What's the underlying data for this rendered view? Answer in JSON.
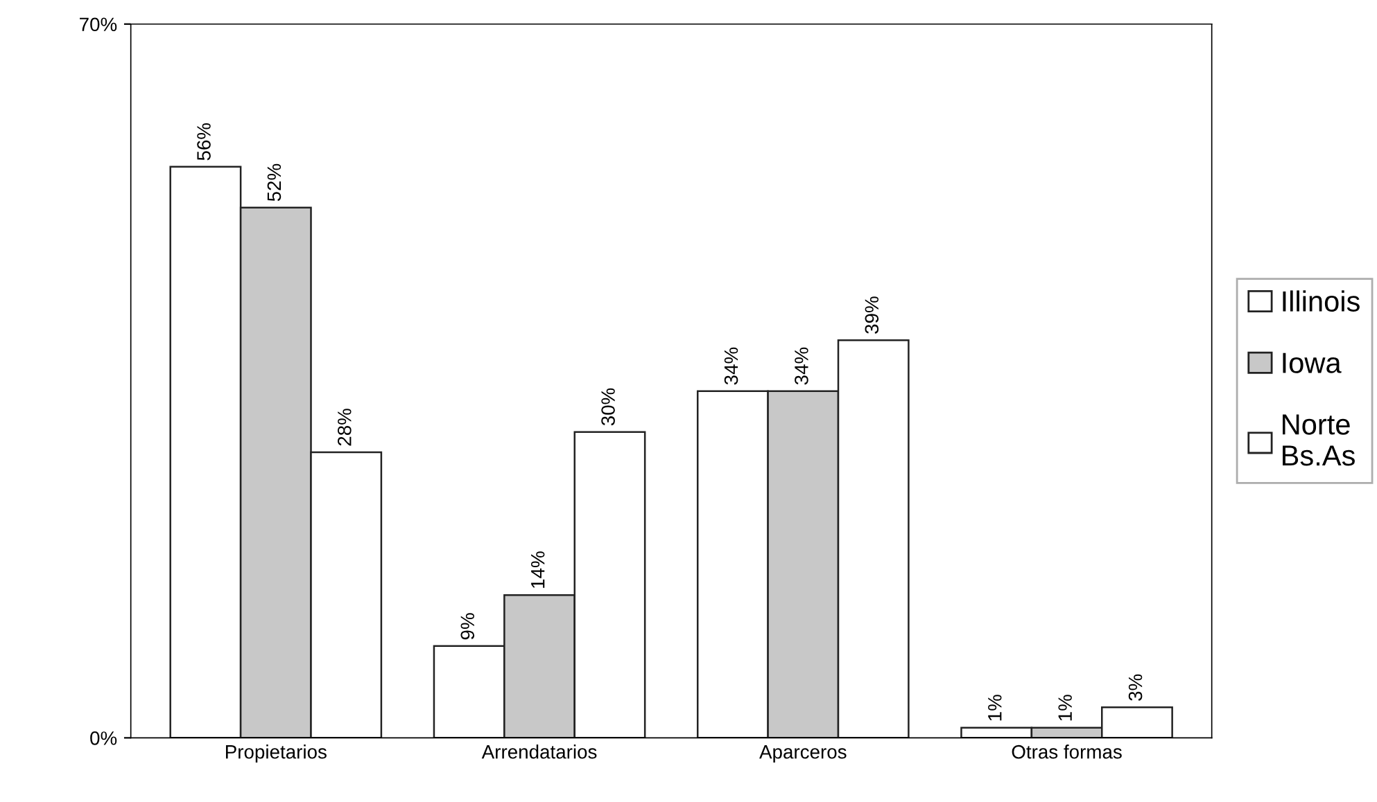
{
  "chart_data": {
    "type": "bar",
    "categories": [
      "Propietarios",
      "Arrendatarios",
      "Aparceros",
      "Otras formas"
    ],
    "series": [
      {
        "name": "Illinois",
        "color": "#ffffff",
        "values": [
          56,
          9,
          34,
          1
        ],
        "value_labels": [
          "56%",
          "9%",
          "34%",
          "1%"
        ]
      },
      {
        "name": "Iowa",
        "color": "#c8c8c8",
        "values": [
          52,
          14,
          34,
          1
        ],
        "value_labels": [
          "52%",
          "14%",
          "34%",
          "1%"
        ]
      },
      {
        "name": "Norte\nBs.As",
        "color": "#ffffff",
        "values": [
          28,
          30,
          39,
          3
        ],
        "value_labels": [
          "28%",
          "30%",
          "39%",
          "3%"
        ]
      }
    ],
    "ylim": [
      0,
      70
    ],
    "yticks": [
      {
        "value": 0,
        "label": "0%"
      },
      {
        "value": 70,
        "label": "70%"
      }
    ],
    "grid": false,
    "legend": "right"
  }
}
